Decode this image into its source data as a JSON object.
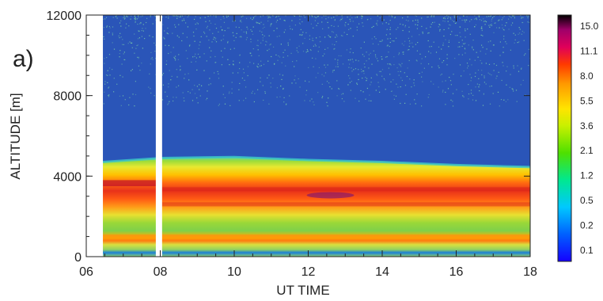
{
  "panel_label": "a)",
  "chart_data": {
    "type": "heatmap",
    "xlabel": "UT TIME",
    "ylabel": "ALTITUDE [m]",
    "xlim": [
      6,
      18
    ],
    "ylim": [
      0,
      12000
    ],
    "x_ticks": [
      "06",
      "08",
      "10",
      "12",
      "14",
      "16",
      "18"
    ],
    "x_tick_values": [
      6,
      8,
      10,
      12,
      14,
      16,
      18
    ],
    "y_ticks": [
      "0",
      "4000",
      "8000",
      "12000"
    ],
    "y_tick_values": [
      0,
      4000,
      8000,
      12000
    ],
    "colorbar_labels": [
      "0.1",
      "0.2",
      "0.5",
      "1.2",
      "2.1",
      "3.6",
      "5.5",
      "8.0",
      "11.1",
      "15.0"
    ],
    "data_gaps_ut": [
      [
        6.0,
        6.45
      ],
      [
        7.88,
        8.05
      ]
    ],
    "layer_top_m": [
      [
        6.45,
        4700
      ],
      [
        8.05,
        4900
      ],
      [
        10,
        4950
      ],
      [
        12,
        4800
      ],
      [
        14,
        4700
      ],
      [
        16,
        4550
      ],
      [
        18,
        4450
      ]
    ],
    "layers": [
      {
        "altitude_range_m": [
          3100,
          4200
        ],
        "level": "8.0"
      },
      {
        "altitude_range_m": [
          2200,
          3000
        ],
        "level": "8.0"
      },
      {
        "altitude_range_m": [
          950,
          1100
        ],
        "level": "8.0"
      },
      {
        "altitude_range_m": [
          300,
          450
        ],
        "level": "0.5"
      }
    ],
    "colors": {
      "background_level": "#2a55b8",
      "noise_dots": "#7fd4a8"
    }
  }
}
